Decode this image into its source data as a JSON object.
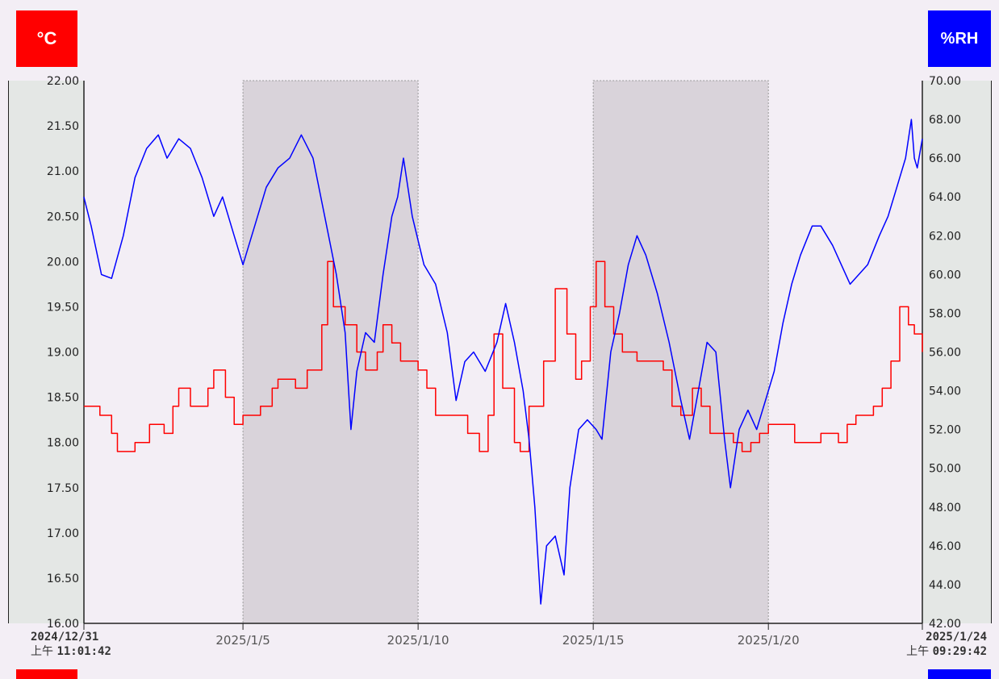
{
  "left_unit": "°C",
  "right_unit": "%RH",
  "start_stamp": {
    "date": "2024/12/31",
    "ampm": "上午",
    "time": "11:01:42"
  },
  "end_stamp": {
    "date": "2025/1/24",
    "ampm": "上午",
    "time": "09:29:42"
  },
  "colors": {
    "temperature": "#ff0000",
    "humidity": "#0000ff",
    "shade": "#d9d3da",
    "background": "#f3eef5"
  },
  "chart_data": {
    "type": "line",
    "x_axis": {
      "type": "date",
      "range": [
        "2024-12-31T11:01:42",
        "2025-01-24T09:29:42"
      ],
      "tick_labels": [
        "2025/1/5",
        "2025/1/10",
        "2025/1/15",
        "2025/1/20"
      ],
      "tick_dates": [
        "2025-01-05",
        "2025-01-10",
        "2025-01-15",
        "2025-01-20"
      ]
    },
    "y_left": {
      "label": "°C",
      "range": [
        16.0,
        22.0
      ],
      "ticks": [
        "16.00",
        "16.50",
        "17.00",
        "17.50",
        "18.00",
        "18.50",
        "19.00",
        "19.50",
        "20.00",
        "20.50",
        "21.00",
        "21.50",
        "22.00"
      ]
    },
    "y_right": {
      "label": "%RH",
      "range": [
        42.0,
        70.0
      ],
      "ticks": [
        "42.00",
        "44.00",
        "46.00",
        "48.00",
        "50.00",
        "52.00",
        "54.00",
        "56.00",
        "58.00",
        "60.00",
        "62.00",
        "64.00",
        "66.00",
        "68.00",
        "70.00"
      ]
    },
    "shaded_ranges": [
      [
        "2025-01-05",
        "2025-01-10"
      ],
      [
        "2025-01-15",
        "2025-01-20"
      ]
    ],
    "grid": false,
    "series": [
      {
        "name": "°C",
        "axis": "left",
        "color": "#ff0000",
        "step": true,
        "points": [
          [
            "2024-12-31T11:00",
            18.4
          ],
          [
            "2024-12-31T22:00",
            18.3
          ],
          [
            "2025-01-01T06:00",
            18.1
          ],
          [
            "2025-01-01T10:00",
            17.9
          ],
          [
            "2025-01-01T22:00",
            18.0
          ],
          [
            "2025-01-02T08:00",
            18.2
          ],
          [
            "2025-01-02T18:00",
            18.1
          ],
          [
            "2025-01-03T00:00",
            18.4
          ],
          [
            "2025-01-03T04:00",
            18.6
          ],
          [
            "2025-01-03T12:00",
            18.4
          ],
          [
            "2025-01-04T00:00",
            18.6
          ],
          [
            "2025-01-04T04:00",
            18.8
          ],
          [
            "2025-01-04T12:00",
            18.5
          ],
          [
            "2025-01-04T18:00",
            18.2
          ],
          [
            "2025-01-05T00:00",
            18.3
          ],
          [
            "2025-01-05T12:00",
            18.4
          ],
          [
            "2025-01-05T20:00",
            18.6
          ],
          [
            "2025-01-06T00:00",
            18.7
          ],
          [
            "2025-01-06T12:00",
            18.6
          ],
          [
            "2025-01-06T20:00",
            18.8
          ],
          [
            "2025-01-07T00:00",
            18.8
          ],
          [
            "2025-01-07T06:00",
            19.3
          ],
          [
            "2025-01-07T10:00",
            20.0
          ],
          [
            "2025-01-07T14:00",
            19.5
          ],
          [
            "2025-01-07T22:00",
            19.3
          ],
          [
            "2025-01-08T06:00",
            19.0
          ],
          [
            "2025-01-08T12:00",
            18.8
          ],
          [
            "2025-01-08T20:00",
            19.0
          ],
          [
            "2025-01-09T00:00",
            19.3
          ],
          [
            "2025-01-09T06:00",
            19.1
          ],
          [
            "2025-01-09T12:00",
            18.9
          ],
          [
            "2025-01-10T00:00",
            18.8
          ],
          [
            "2025-01-10T06:00",
            18.6
          ],
          [
            "2025-01-10T12:00",
            18.3
          ],
          [
            "2025-01-11T00:00",
            18.3
          ],
          [
            "2025-01-11T10:00",
            18.1
          ],
          [
            "2025-01-11T18:00",
            17.9
          ],
          [
            "2025-01-12T00:00",
            18.3
          ],
          [
            "2025-01-12T04:00",
            19.2
          ],
          [
            "2025-01-12T10:00",
            18.6
          ],
          [
            "2025-01-12T18:00",
            18.0
          ],
          [
            "2025-01-12T22:00",
            17.9
          ],
          [
            "2025-01-13T04:00",
            18.4
          ],
          [
            "2025-01-13T14:00",
            18.9
          ],
          [
            "2025-01-13T22:00",
            19.7
          ],
          [
            "2025-01-14T06:00",
            19.2
          ],
          [
            "2025-01-14T12:00",
            18.7
          ],
          [
            "2025-01-14T16:00",
            18.9
          ],
          [
            "2025-01-14T22:00",
            19.5
          ],
          [
            "2025-01-15T02:00",
            20.0
          ],
          [
            "2025-01-15T08:00",
            19.5
          ],
          [
            "2025-01-15T14:00",
            19.2
          ],
          [
            "2025-01-15T20:00",
            19.0
          ],
          [
            "2025-01-16T06:00",
            18.9
          ],
          [
            "2025-01-16T18:00",
            18.9
          ],
          [
            "2025-01-17T00:00",
            18.8
          ],
          [
            "2025-01-17T06:00",
            18.4
          ],
          [
            "2025-01-17T12:00",
            18.3
          ],
          [
            "2025-01-17T20:00",
            18.6
          ],
          [
            "2025-01-18T02:00",
            18.4
          ],
          [
            "2025-01-18T08:00",
            18.1
          ],
          [
            "2025-01-18T16:00",
            18.1
          ],
          [
            "2025-01-19T00:00",
            18.0
          ],
          [
            "2025-01-19T06:00",
            17.9
          ],
          [
            "2025-01-19T12:00",
            18.0
          ],
          [
            "2025-01-19T18:00",
            18.1
          ],
          [
            "2025-01-20T00:00",
            18.2
          ],
          [
            "2025-01-20T12:00",
            18.2
          ],
          [
            "2025-01-20T18:00",
            18.0
          ],
          [
            "2025-01-21T00:00",
            18.0
          ],
          [
            "2025-01-21T12:00",
            18.1
          ],
          [
            "2025-01-22T00:00",
            18.0
          ],
          [
            "2025-01-22T06:00",
            18.2
          ],
          [
            "2025-01-22T12:00",
            18.3
          ],
          [
            "2025-01-23T00:00",
            18.4
          ],
          [
            "2025-01-23T06:00",
            18.6
          ],
          [
            "2025-01-23T12:00",
            18.9
          ],
          [
            "2025-01-23T18:00",
            19.5
          ],
          [
            "2025-01-24T00:00",
            19.3
          ],
          [
            "2025-01-24T04:00",
            19.2
          ],
          [
            "2025-01-24T09:29",
            19.0
          ]
        ]
      },
      {
        "name": "%RH",
        "axis": "right",
        "color": "#0000ff",
        "step": false,
        "points": [
          [
            "2024-12-31T11:00",
            64.0
          ],
          [
            "2024-12-31T16:00",
            62.5
          ],
          [
            "2024-12-31T23:00",
            60.0
          ],
          [
            "2025-01-01T06:00",
            59.8
          ],
          [
            "2025-01-01T14:00",
            62.0
          ],
          [
            "2025-01-01T22:00",
            65.0
          ],
          [
            "2025-01-02T06:00",
            66.5
          ],
          [
            "2025-01-02T14:00",
            67.2
          ],
          [
            "2025-01-02T20:00",
            66.0
          ],
          [
            "2025-01-03T04:00",
            67.0
          ],
          [
            "2025-01-03T12:00",
            66.5
          ],
          [
            "2025-01-03T20:00",
            65.0
          ],
          [
            "2025-01-04T04:00",
            63.0
          ],
          [
            "2025-01-04T10:00",
            64.0
          ],
          [
            "2025-01-04T18:00",
            62.0
          ],
          [
            "2025-01-05T00:00",
            60.5
          ],
          [
            "2025-01-05T08:00",
            62.5
          ],
          [
            "2025-01-05T16:00",
            64.5
          ],
          [
            "2025-01-06T00:00",
            65.5
          ],
          [
            "2025-01-06T08:00",
            66.0
          ],
          [
            "2025-01-06T16:00",
            67.2
          ],
          [
            "2025-01-07T00:00",
            66.0
          ],
          [
            "2025-01-07T08:00",
            63.0
          ],
          [
            "2025-01-07T16:00",
            60.0
          ],
          [
            "2025-01-07T22:00",
            57.0
          ],
          [
            "2025-01-08T02:00",
            52.0
          ],
          [
            "2025-01-08T06:00",
            55.0
          ],
          [
            "2025-01-08T12:00",
            57.0
          ],
          [
            "2025-01-08T18:00",
            56.5
          ],
          [
            "2025-01-09T00:00",
            60.0
          ],
          [
            "2025-01-09T06:00",
            63.0
          ],
          [
            "2025-01-09T10:00",
            64.0
          ],
          [
            "2025-01-09T14:00",
            66.0
          ],
          [
            "2025-01-09T20:00",
            63.0
          ],
          [
            "2025-01-10T04:00",
            60.5
          ],
          [
            "2025-01-10T12:00",
            59.5
          ],
          [
            "2025-01-10T20:00",
            57.0
          ],
          [
            "2025-01-11T02:00",
            53.5
          ],
          [
            "2025-01-11T08:00",
            55.5
          ],
          [
            "2025-01-11T14:00",
            56.0
          ],
          [
            "2025-01-11T22:00",
            55.0
          ],
          [
            "2025-01-12T06:00",
            56.5
          ],
          [
            "2025-01-12T12:00",
            58.5
          ],
          [
            "2025-01-12T18:00",
            56.5
          ],
          [
            "2025-01-13T00:00",
            54.0
          ],
          [
            "2025-01-13T04:00",
            51.5
          ],
          [
            "2025-01-13T08:00",
            48.0
          ],
          [
            "2025-01-13T12:00",
            43.0
          ],
          [
            "2025-01-13T16:00",
            46.0
          ],
          [
            "2025-01-13T22:00",
            46.5
          ],
          [
            "2025-01-14T04:00",
            44.5
          ],
          [
            "2025-01-14T08:00",
            49.0
          ],
          [
            "2025-01-14T14:00",
            52.0
          ],
          [
            "2025-01-14T20:00",
            52.5
          ],
          [
            "2025-01-15T02:00",
            52.0
          ],
          [
            "2025-01-15T06:00",
            51.5
          ],
          [
            "2025-01-15T12:00",
            56.0
          ],
          [
            "2025-01-15T18:00",
            58.0
          ],
          [
            "2025-01-16T00:00",
            60.5
          ],
          [
            "2025-01-16T06:00",
            62.0
          ],
          [
            "2025-01-16T12:00",
            61.0
          ],
          [
            "2025-01-16T20:00",
            59.0
          ],
          [
            "2025-01-17T04:00",
            56.5
          ],
          [
            "2025-01-17T12:00",
            53.5
          ],
          [
            "2025-01-17T18:00",
            51.5
          ],
          [
            "2025-01-18T00:00",
            54.0
          ],
          [
            "2025-01-18T06:00",
            56.5
          ],
          [
            "2025-01-18T12:00",
            56.0
          ],
          [
            "2025-01-18T18:00",
            51.5
          ],
          [
            "2025-01-18T22:00",
            49.0
          ],
          [
            "2025-01-19T04:00",
            52.0
          ],
          [
            "2025-01-19T10:00",
            53.0
          ],
          [
            "2025-01-19T16:00",
            52.0
          ],
          [
            "2025-01-19T22:00",
            53.5
          ],
          [
            "2025-01-20T04:00",
            55.0
          ],
          [
            "2025-01-20T10:00",
            57.5
          ],
          [
            "2025-01-20T16:00",
            59.5
          ],
          [
            "2025-01-20T22:00",
            61.0
          ],
          [
            "2025-01-21T06:00",
            62.5
          ],
          [
            "2025-01-21T12:00",
            62.5
          ],
          [
            "2025-01-21T20:00",
            61.5
          ],
          [
            "2025-01-22T02:00",
            60.5
          ],
          [
            "2025-01-22T08:00",
            59.5
          ],
          [
            "2025-01-22T14:00",
            60.0
          ],
          [
            "2025-01-22T20:00",
            60.5
          ],
          [
            "2025-01-23T04:00",
            62.0
          ],
          [
            "2025-01-23T10:00",
            63.0
          ],
          [
            "2025-01-23T16:00",
            64.5
          ],
          [
            "2025-01-23T22:00",
            66.0
          ],
          [
            "2025-01-24T02:00",
            68.0
          ],
          [
            "2025-01-24T04:00",
            66.0
          ],
          [
            "2025-01-24T06:00",
            65.5
          ],
          [
            "2025-01-24T09:29",
            67.0
          ]
        ]
      }
    ]
  }
}
